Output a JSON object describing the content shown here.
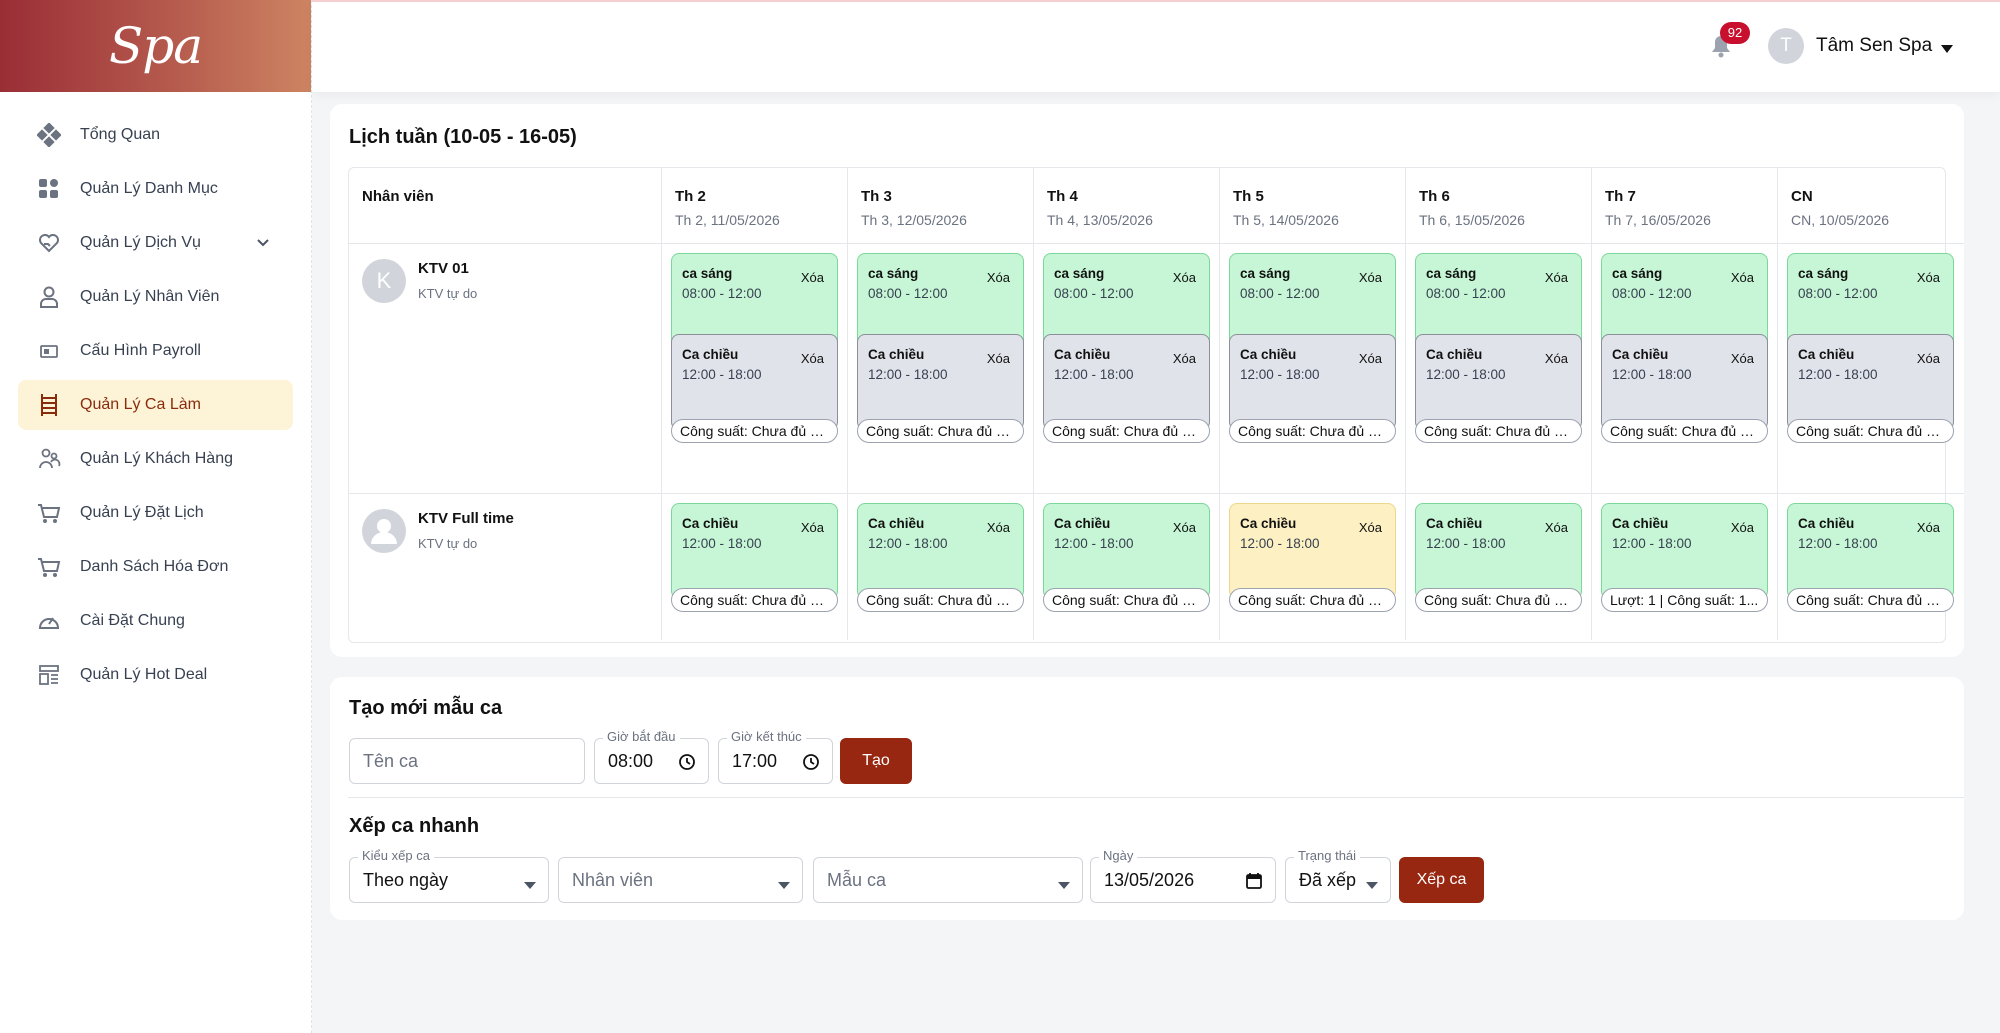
{
  "brand": {
    "logo_text": "Spa"
  },
  "sidebar": {
    "items": [
      {
        "label": "Tổng Quan",
        "icon": "dashboard-diamond-icon"
      },
      {
        "label": "Quản Lý Danh Mục",
        "icon": "grid-icon"
      },
      {
        "label": "Quản Lý Dịch Vụ",
        "icon": "heart-hand-icon",
        "expandable": true
      },
      {
        "label": "Quản Lý Nhân Viên",
        "icon": "person-icon"
      },
      {
        "label": "Cấu Hình Payroll",
        "icon": "payroll-icon"
      },
      {
        "label": "Quản Lý Ca Làm",
        "icon": "ladder-icon",
        "active": true
      },
      {
        "label": "Quản Lý Khách Hàng",
        "icon": "customers-icon"
      },
      {
        "label": "Quản Lý Đặt Lịch",
        "icon": "cart-icon"
      },
      {
        "label": "Danh Sách Hóa Đơn",
        "icon": "cart-icon"
      },
      {
        "label": "Cài Đặt Chung",
        "icon": "gauge-icon"
      },
      {
        "label": "Quản Lý Hot Deal",
        "icon": "layout-icon"
      }
    ]
  },
  "header": {
    "notification_count": "92",
    "user_initial": "T",
    "user_name": "Tâm Sen Spa"
  },
  "schedule": {
    "title": "Lịch tuần (10-05 - 16-05)",
    "employee_header": "Nhân viên",
    "days": [
      {
        "label": "Th 2",
        "date": "Th 2, 11/05/2026"
      },
      {
        "label": "Th 3",
        "date": "Th 3, 12/05/2026"
      },
      {
        "label": "Th 4",
        "date": "Th 4, 13/05/2026"
      },
      {
        "label": "Th 5",
        "date": "Th 5, 14/05/2026"
      },
      {
        "label": "Th 6",
        "date": "Th 6, 15/05/2026"
      },
      {
        "label": "Th 7",
        "date": "Th 7, 16/05/2026"
      },
      {
        "label": "CN",
        "date": "CN, 10/05/2026"
      }
    ],
    "delete_label": "Xóa",
    "employees": [
      {
        "initial": "K",
        "name": "KTV 01",
        "role": "KTV tự do",
        "days": [
          {
            "shifts": [
              {
                "name": "ca sáng",
                "time": "08:00 - 12:00",
                "color": "green"
              },
              {
                "name": "Ca chiều",
                "time": "12:00 - 18:00",
                "color": "gray"
              }
            ],
            "capacity": "Công suất: Chưa đủ dữ liệu"
          },
          {
            "shifts": [
              {
                "name": "ca sáng",
                "time": "08:00 - 12:00",
                "color": "green"
              },
              {
                "name": "Ca chiều",
                "time": "12:00 - 18:00",
                "color": "gray"
              }
            ],
            "capacity": "Công suất: Chưa đủ dữ liệu"
          },
          {
            "shifts": [
              {
                "name": "ca sáng",
                "time": "08:00 - 12:00",
                "color": "green"
              },
              {
                "name": "Ca chiều",
                "time": "12:00 - 18:00",
                "color": "gray"
              }
            ],
            "capacity": "Công suất: Chưa đủ dữ liệu"
          },
          {
            "shifts": [
              {
                "name": "ca sáng",
                "time": "08:00 - 12:00",
                "color": "green"
              },
              {
                "name": "Ca chiều",
                "time": "12:00 - 18:00",
                "color": "gray"
              }
            ],
            "capacity": "Công suất: Chưa đủ dữ liệu"
          },
          {
            "shifts": [
              {
                "name": "ca sáng",
                "time": "08:00 - 12:00",
                "color": "green"
              },
              {
                "name": "Ca chiều",
                "time": "12:00 - 18:00",
                "color": "gray"
              }
            ],
            "capacity": "Công suất: Chưa đủ dữ liệu"
          },
          {
            "shifts": [
              {
                "name": "ca sáng",
                "time": "08:00 - 12:00",
                "color": "green"
              },
              {
                "name": "Ca chiều",
                "time": "12:00 - 18:00",
                "color": "gray"
              }
            ],
            "capacity": "Công suất: Chưa đủ dữ liệu"
          },
          {
            "shifts": [
              {
                "name": "ca sáng",
                "time": "08:00 - 12:00",
                "color": "green"
              },
              {
                "name": "Ca chiều",
                "time": "12:00 - 18:00",
                "color": "gray"
              }
            ],
            "capacity": "Công suất: Chưa đủ dữ liệu"
          }
        ]
      },
      {
        "initial": "",
        "name": "KTV Full time",
        "role": "KTV tự do",
        "days": [
          {
            "shifts": [
              {
                "name": "Ca chiều",
                "time": "12:00 - 18:00",
                "color": "green"
              }
            ],
            "capacity": "Công suất: Chưa đủ dữ liệu"
          },
          {
            "shifts": [
              {
                "name": "Ca chiều",
                "time": "12:00 - 18:00",
                "color": "green"
              }
            ],
            "capacity": "Công suất: Chưa đủ dữ liệu"
          },
          {
            "shifts": [
              {
                "name": "Ca chiều",
                "time": "12:00 - 18:00",
                "color": "green"
              }
            ],
            "capacity": "Công suất: Chưa đủ dữ liệu"
          },
          {
            "shifts": [
              {
                "name": "Ca chiều",
                "time": "12:00 - 18:00",
                "color": "yellow"
              }
            ],
            "capacity": "Công suất: Chưa đủ dữ liệu"
          },
          {
            "shifts": [
              {
                "name": "Ca chiều",
                "time": "12:00 - 18:00",
                "color": "green"
              }
            ],
            "capacity": "Công suất: Chưa đủ dữ liệu"
          },
          {
            "shifts": [
              {
                "name": "Ca chiều",
                "time": "12:00 - 18:00",
                "color": "green"
              }
            ],
            "capacity": "Lượt: 1 | Công suất: 1..."
          },
          {
            "shifts": [
              {
                "name": "Ca chiều",
                "time": "12:00 - 18:00",
                "color": "green"
              }
            ],
            "capacity": "Công suất: Chưa đủ dữ liệu"
          }
        ]
      }
    ]
  },
  "create_template": {
    "title": "Tạo mới mẫu ca",
    "name_placeholder": "Tên ca",
    "start_label": "Giờ bắt đầu",
    "start_value": "08:00",
    "end_label": "Giờ kết thúc",
    "end_value": "17:00",
    "submit": "Tạo"
  },
  "quick_assign": {
    "title": "Xếp ca nhanh",
    "mode_label": "Kiểu xếp ca",
    "mode_value": "Theo ngày",
    "employee_placeholder": "Nhân viên",
    "template_placeholder": "Mẫu ca",
    "date_label": "Ngày",
    "date_value": "13/05/2026",
    "status_label": "Trạng thái",
    "status_value": "Đã xếp",
    "submit": "Xếp ca"
  },
  "colors": {
    "accent": "#972711",
    "active_bg": "#fdf4d8",
    "green_shift": "#c6f6d5",
    "gray_shift": "#e1e3ea",
    "yellow_shift": "#fdf1c3",
    "badge": "#c8102e"
  }
}
